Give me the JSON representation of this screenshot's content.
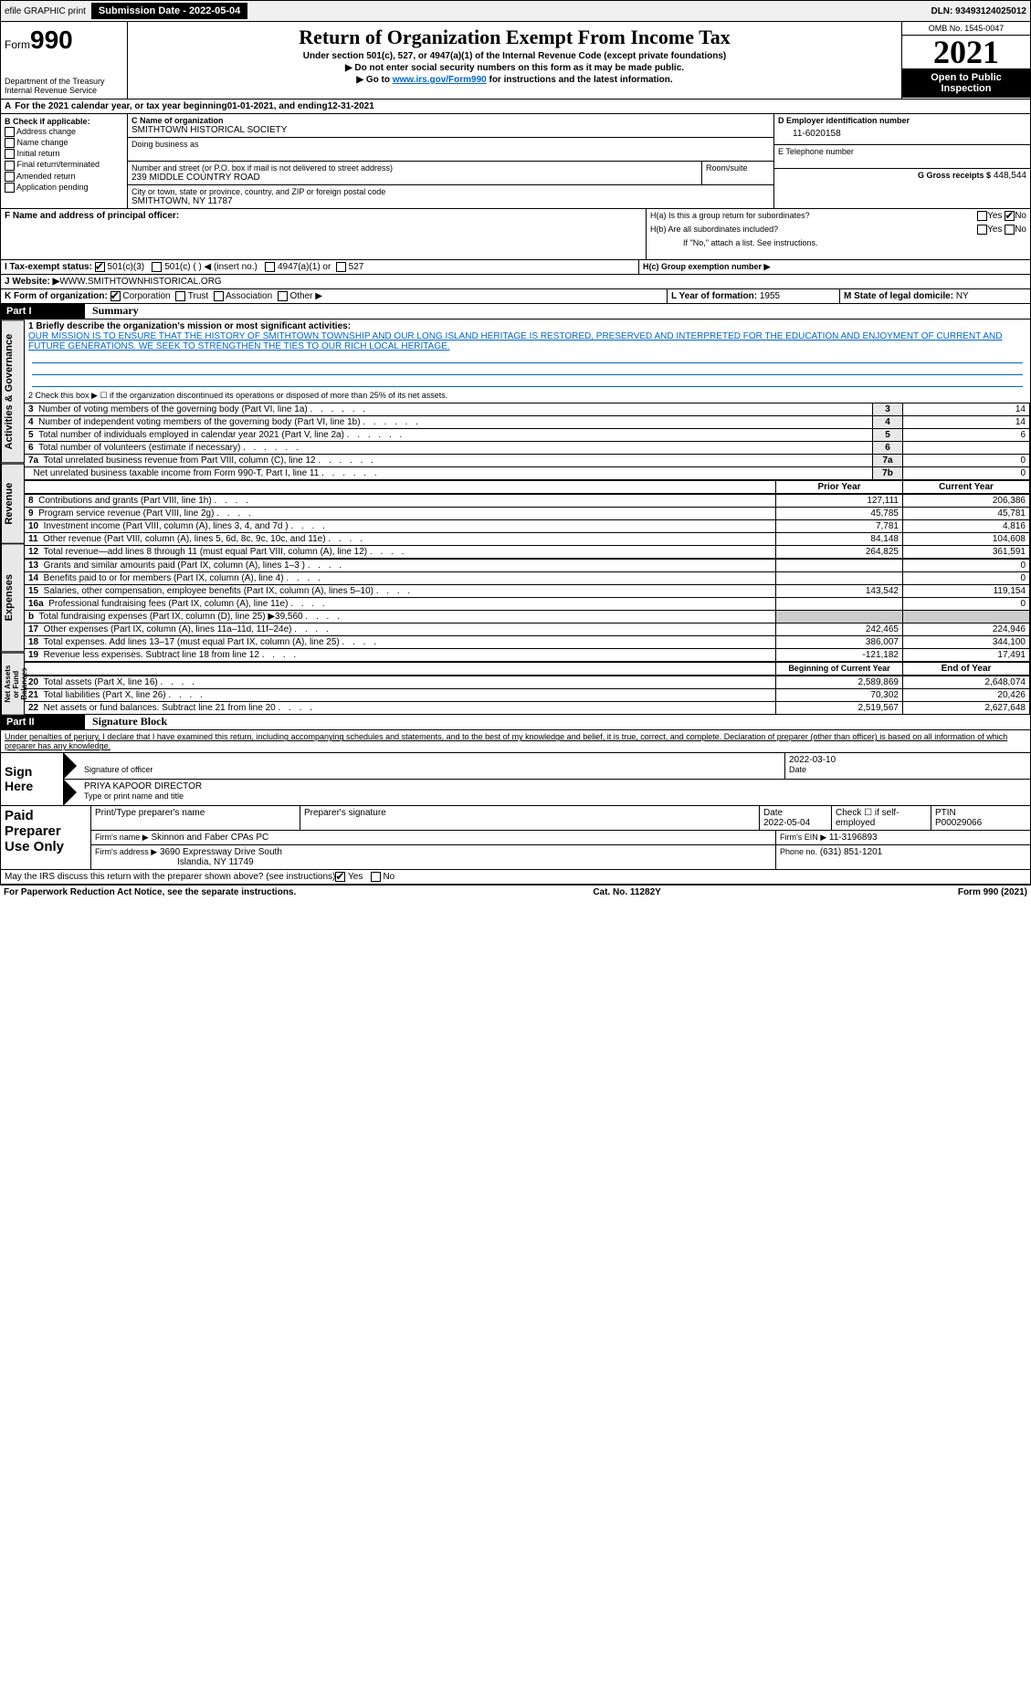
{
  "topbar": {
    "efile": "efile GRAPHIC print",
    "submission_label": "Submission Date - 2022-05-04",
    "dln_label": "DLN: 93493124025012"
  },
  "header": {
    "form_prefix": "Form",
    "form_number": "990",
    "dept": "Department of the Treasury",
    "irs": "Internal Revenue Service",
    "title": "Return of Organization Exempt From Income Tax",
    "subtitle": "Under section 501(c), 527, or 4947(a)(1) of the Internal Revenue Code (except private foundations)",
    "warn": "▶ Do not enter social security numbers on this form as it may be made public.",
    "goto_pre": "▶ Go to ",
    "goto_link": "www.irs.gov/Form990",
    "goto_post": " for instructions and the latest information.",
    "omb": "OMB No. 1545-0047",
    "year": "2021",
    "open": "Open to Public Inspection"
  },
  "period": {
    "text_pre": "For the 2021 calendar year, or tax year beginning ",
    "begin": "01-01-2021",
    "mid": " , and ending ",
    "end": "12-31-2021"
  },
  "boxB": {
    "label": "B Check if applicable:",
    "items": [
      "Address change",
      "Name change",
      "Initial return",
      "Final return/terminated",
      "Amended return",
      "Application pending"
    ]
  },
  "boxC": {
    "name_label": "C Name of organization",
    "name": "SMITHTOWN HISTORICAL SOCIETY",
    "dba_label": "Doing business as",
    "street_label": "Number and street (or P.O. box if mail is not delivered to street address)",
    "room_label": "Room/suite",
    "street": "239 MIDDLE COUNTRY ROAD",
    "city_label": "City or town, state or province, country, and ZIP or foreign postal code",
    "city": "SMITHTOWN, NY  11787"
  },
  "boxD": {
    "label": "D Employer identification number",
    "value": "11-6020158"
  },
  "boxE": {
    "label": "E Telephone number"
  },
  "boxG": {
    "label": "G Gross receipts $",
    "value": "448,544"
  },
  "boxF": {
    "label": "F  Name and address of principal officer:"
  },
  "boxH": {
    "a_label": "H(a)  Is this a group return for subordinates?",
    "b_label": "H(b)  Are all subordinates included?",
    "b_note": "If \"No,\" attach a list. See instructions.",
    "c_label": "H(c)  Group exemption number ▶",
    "yes": "Yes",
    "no": "No"
  },
  "boxI": {
    "label": "I  Tax-exempt status:",
    "opts": [
      "501(c)(3)",
      "501(c) (   ) ◀ (insert no.)",
      "4947(a)(1) or",
      "527"
    ]
  },
  "boxJ": {
    "label": "J  Website: ▶",
    "value": "WWW.SMITHTOWNHISTORICAL.ORG"
  },
  "boxK": {
    "label": "K Form of organization:",
    "opts": [
      "Corporation",
      "Trust",
      "Association",
      "Other ▶"
    ]
  },
  "boxL": {
    "label": "L Year of formation:",
    "value": "1955"
  },
  "boxM": {
    "label": "M State of legal domicile:",
    "value": "NY"
  },
  "part1": {
    "header": "Part I",
    "title": "Summary",
    "line1_label": "1  Briefly describe the organization's mission or most significant activities:",
    "mission": "OUR MISSION IS TO ENSURE THAT THE HISTORY OF SMITHTOWN TOWNSHIP AND OUR LONG ISLAND HERITAGE IS RESTORED, PRESERVED AND INTERPRETED FOR THE EDUCATION AND ENJOYMENT OF CURRENT AND FUTURE GENERATIONS. WE SEEK TO STRENGTHEN THE TIES TO OUR RICH LOCAL HERITAGE.",
    "line2": "2   Check this box ▶ ☐  if the organization discontinued its operations or disposed of more than 25% of its net assets.",
    "side_labels": {
      "gov": "Activities & Governance",
      "rev": "Revenue",
      "exp": "Expenses",
      "net": "Net Assets or Fund Balances"
    },
    "col_prior": "Prior Year",
    "col_current": "Current Year",
    "col_begin": "Beginning of Current Year",
    "col_end": "End of Year",
    "gov_rows": [
      {
        "n": "3",
        "label": "Number of voting members of the governing body (Part VI, line 1a)",
        "box": "3",
        "v": "14"
      },
      {
        "n": "4",
        "label": "Number of independent voting members of the governing body (Part VI, line 1b)",
        "box": "4",
        "v": "14"
      },
      {
        "n": "5",
        "label": "Total number of individuals employed in calendar year 2021 (Part V, line 2a)",
        "box": "5",
        "v": "6"
      },
      {
        "n": "6",
        "label": "Total number of volunteers (estimate if necessary)",
        "box": "6",
        "v": ""
      },
      {
        "n": "7a",
        "label": "Total unrelated business revenue from Part VIII, column (C), line 12",
        "box": "7a",
        "v": "0"
      },
      {
        "n": "",
        "label": "Net unrelated business taxable income from Form 990-T, Part I, line 11",
        "box": "7b",
        "v": "0"
      }
    ],
    "rev_rows": [
      {
        "n": "8",
        "label": "Contributions and grants (Part VIII, line 1h)",
        "p": "127,111",
        "c": "206,386"
      },
      {
        "n": "9",
        "label": "Program service revenue (Part VIII, line 2g)",
        "p": "45,785",
        "c": "45,781"
      },
      {
        "n": "10",
        "label": "Investment income (Part VIII, column (A), lines 3, 4, and 7d )",
        "p": "7,781",
        "c": "4,816"
      },
      {
        "n": "11",
        "label": "Other revenue (Part VIII, column (A), lines 5, 6d, 8c, 9c, 10c, and 11e)",
        "p": "84,148",
        "c": "104,608"
      },
      {
        "n": "12",
        "label": "Total revenue—add lines 8 through 11 (must equal Part VIII, column (A), line 12)",
        "p": "264,825",
        "c": "361,591"
      }
    ],
    "exp_rows": [
      {
        "n": "13",
        "label": "Grants and similar amounts paid (Part IX, column (A), lines 1–3 )",
        "p": "",
        "c": "0"
      },
      {
        "n": "14",
        "label": "Benefits paid to or for members (Part IX, column (A), line 4)",
        "p": "",
        "c": "0"
      },
      {
        "n": "15",
        "label": "Salaries, other compensation, employee benefits (Part IX, column (A), lines 5–10)",
        "p": "143,542",
        "c": "119,154"
      },
      {
        "n": "16a",
        "label": "Professional fundraising fees (Part IX, column (A), line 11e)",
        "p": "",
        "c": "0"
      },
      {
        "n": "b",
        "label": "Total fundraising expenses (Part IX, column (D), line 25) ▶39,560",
        "p": "shade",
        "c": "shade"
      },
      {
        "n": "17",
        "label": "Other expenses (Part IX, column (A), lines 11a–11d, 11f–24e)",
        "p": "242,465",
        "c": "224,946"
      },
      {
        "n": "18",
        "label": "Total expenses. Add lines 13–17 (must equal Part IX, column (A), line 25)",
        "p": "386,007",
        "c": "344,100"
      },
      {
        "n": "19",
        "label": "Revenue less expenses. Subtract line 18 from line 12",
        "p": "-121,182",
        "c": "17,491"
      }
    ],
    "net_rows": [
      {
        "n": "20",
        "label": "Total assets (Part X, line 16)",
        "p": "2,589,869",
        "c": "2,648,074"
      },
      {
        "n": "21",
        "label": "Total liabilities (Part X, line 26)",
        "p": "70,302",
        "c": "20,426"
      },
      {
        "n": "22",
        "label": "Net assets or fund balances. Subtract line 21 from line 20",
        "p": "2,519,567",
        "c": "2,627,648"
      }
    ]
  },
  "part2": {
    "header": "Part II",
    "title": "Signature Block",
    "penalty": "Under penalties of perjury, I declare that I have examined this return, including accompanying schedules and statements, and to the best of my knowledge and belief, it is true, correct, and complete. Declaration of preparer (other than officer) is based on all information of which preparer has any knowledge.",
    "sign_here": "Sign Here",
    "sig_officer": "Signature of officer",
    "date_label": "Date",
    "sig_date": "2022-03-10",
    "name_title": "PRIYA KAPOOR  DIRECTOR",
    "type_name": "Type or print name and title",
    "paid": "Paid Preparer Use Only",
    "col_preparer": "Print/Type preparer's name",
    "col_sig": "Preparer's signature",
    "col_date": "Date",
    "prep_date": "2022-05-04",
    "check_self": "Check ☐ if self-employed",
    "ptin_label": "PTIN",
    "ptin": "P00029066",
    "firm_label": "Firm's name    ▶",
    "firm": "Skinnon and Faber CPAs PC",
    "ein_label": "Firm's EIN ▶",
    "ein": "11-3196893",
    "addr_label": "Firm's address ▶",
    "addr1": "3690 Expressway Drive South",
    "addr2": "Islandia, NY  11749",
    "phone_label": "Phone no.",
    "phone": "(631) 851-1201",
    "discuss": "May the IRS discuss this return with the preparer shown above? (see instructions)",
    "yes": "Yes",
    "no": "No"
  },
  "footer": {
    "left": "For Paperwork Reduction Act Notice, see the separate instructions.",
    "mid": "Cat. No. 11282Y",
    "right": "Form 990 (2021)"
  }
}
